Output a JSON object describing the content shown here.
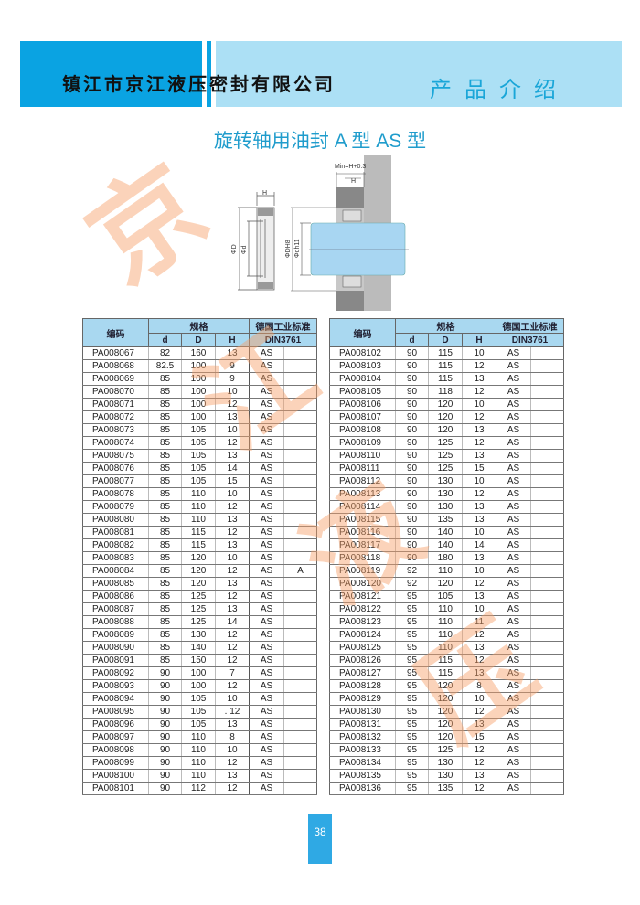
{
  "header": {
    "company": "镇江市京江液压密封有限公司",
    "section": "产品介绍"
  },
  "title": "旋转轴用油封 A 型   AS 型",
  "watermark": [
    "京",
    "江",
    "液",
    "压"
  ],
  "diagram": {
    "labels": {
      "h": "H",
      "d_outer": "ΦD",
      "d_inner": "Φd",
      "bore": "ΦDH8",
      "shaft": "Φdh11",
      "min": "Min=H+0.3"
    }
  },
  "table_headers": {
    "code": "编码",
    "spec": "规格",
    "d": "d",
    "D": "D",
    "H": "H",
    "std": "德国工业标准",
    "std_code": "DIN3761"
  },
  "left_rows": [
    [
      "PA008067",
      "82",
      "160",
      "13",
      "AS",
      ""
    ],
    [
      "PA008068",
      "82.5",
      "100",
      "9",
      "AS",
      ""
    ],
    [
      "PA008069",
      "85",
      "100",
      "9",
      "AS",
      ""
    ],
    [
      "PA008070",
      "85",
      "100",
      "10",
      "AS",
      ""
    ],
    [
      "PA008071",
      "85",
      "100",
      "12",
      "AS",
      ""
    ],
    [
      "PA008072",
      "85",
      "100",
      "13",
      "AS",
      ""
    ],
    [
      "PA008073",
      "85",
      "105",
      "10",
      "AS",
      ""
    ],
    [
      "PA008074",
      "85",
      "105",
      "12",
      "AS",
      ""
    ],
    [
      "PA008075",
      "85",
      "105",
      "13",
      "AS",
      ""
    ],
    [
      "PA008076",
      "85",
      "105",
      "14",
      "AS",
      ""
    ],
    [
      "PA008077",
      "85",
      "105",
      "15",
      "AS",
      ""
    ],
    [
      "PA008078",
      "85",
      "110",
      "10",
      "AS",
      ""
    ],
    [
      "PA008079",
      "85",
      "110",
      "12",
      "AS",
      ""
    ],
    [
      "PA008080",
      "85",
      "110",
      "13",
      "AS",
      ""
    ],
    [
      "PA008081",
      "85",
      "115",
      "12",
      "AS",
      ""
    ],
    [
      "PA008082",
      "85",
      "115",
      "13",
      "AS",
      ""
    ],
    [
      "PA008083",
      "85",
      "120",
      "10",
      "AS",
      ""
    ],
    [
      "PA008084",
      "85",
      "120",
      "12",
      "AS",
      "A"
    ],
    [
      "PA008085",
      "85",
      "120",
      "13",
      "AS",
      ""
    ],
    [
      "PA008086",
      "85",
      "125",
      "12",
      "AS",
      ""
    ],
    [
      "PA008087",
      "85",
      "125",
      "13",
      "AS",
      ""
    ],
    [
      "PA008088",
      "85",
      "125",
      "14",
      "AS",
      ""
    ],
    [
      "PA008089",
      "85",
      "130",
      "12",
      "AS",
      ""
    ],
    [
      "PA008090",
      "85",
      "140",
      "12",
      "AS",
      ""
    ],
    [
      "PA008091",
      "85",
      "150",
      "12",
      "AS",
      ""
    ],
    [
      "PA008092",
      "90",
      "100",
      "7",
      "AS",
      ""
    ],
    [
      "PA008093",
      "90",
      "100",
      "12",
      "AS",
      ""
    ],
    [
      "PA008094",
      "90",
      "105",
      "10",
      "AS",
      ""
    ],
    [
      "PA008095",
      "90",
      "105",
      ". 12",
      "AS",
      ""
    ],
    [
      "PA008096",
      "90",
      "105",
      "13",
      "AS",
      ""
    ],
    [
      "PA008097",
      "90",
      "110",
      "8",
      "AS",
      ""
    ],
    [
      "PA008098",
      "90",
      "110",
      "10",
      "AS",
      ""
    ],
    [
      "PA008099",
      "90",
      "110",
      "12",
      "AS",
      ""
    ],
    [
      "PA008100",
      "90",
      "110",
      "13",
      "AS",
      ""
    ],
    [
      "PA008101",
      "90",
      "112",
      "12",
      "AS",
      ""
    ]
  ],
  "right_rows": [
    [
      "PA008102",
      "90",
      "115",
      "10",
      "AS",
      ""
    ],
    [
      "PA008103",
      "90",
      "115",
      "12",
      "AS",
      ""
    ],
    [
      "PA008104",
      "90",
      "115",
      "13",
      "AS",
      ""
    ],
    [
      "PA008105",
      "90",
      "118",
      "12",
      "AS",
      ""
    ],
    [
      "PA008106",
      "90",
      "120",
      "10",
      "AS",
      ""
    ],
    [
      "PA008107",
      "90",
      "120",
      "12",
      "AS",
      ""
    ],
    [
      "PA008108",
      "90",
      "120",
      "13",
      "AS",
      ""
    ],
    [
      "PA008109",
      "90",
      "125",
      "12",
      "AS",
      ""
    ],
    [
      "PA008110",
      "90",
      "125",
      "13",
      "AS",
      ""
    ],
    [
      "PA008111",
      "90",
      "125",
      "15",
      "AS",
      ""
    ],
    [
      "PA008112",
      "90",
      "130",
      "10",
      "AS",
      ""
    ],
    [
      "PA008113",
      "90",
      "130",
      "12",
      "AS",
      ""
    ],
    [
      "PA008114",
      "90",
      "130",
      "13",
      "AS",
      ""
    ],
    [
      "PA008115",
      "90",
      "135",
      "13",
      "AS",
      ""
    ],
    [
      "PA008116",
      "90",
      "140",
      "10",
      "AS",
      ""
    ],
    [
      "PA008117",
      "90",
      "140",
      "14",
      "AS",
      ""
    ],
    [
      "PA008118",
      "90",
      "180",
      "13",
      "AS",
      ""
    ],
    [
      "PA008119",
      "92",
      "110",
      "10",
      "AS",
      ""
    ],
    [
      "PA008120",
      "92",
      "120",
      "12",
      "AS",
      ""
    ],
    [
      "PA008121",
      "95",
      "105",
      "13",
      "AS",
      ""
    ],
    [
      "PA008122",
      "95",
      "110",
      "10",
      "AS",
      ""
    ],
    [
      "PA008123",
      "95",
      "110",
      "11",
      "AS",
      ""
    ],
    [
      "PA008124",
      "95",
      "110",
      "12",
      "AS",
      ""
    ],
    [
      "PA008125",
      "95",
      "110",
      "13",
      "AS",
      ""
    ],
    [
      "PA008126",
      "95",
      "115",
      "12",
      "AS",
      ""
    ],
    [
      "PA008127",
      "95",
      "115",
      "13",
      "AS",
      ""
    ],
    [
      "PA008128",
      "95",
      "120",
      "8",
      "AS",
      ""
    ],
    [
      "PA008129",
      "95",
      "120",
      "10",
      "AS",
      ""
    ],
    [
      "PA008130",
      "95",
      "120",
      "12",
      "AS",
      ""
    ],
    [
      "PA008131",
      "95",
      "120",
      "13",
      "AS",
      ""
    ],
    [
      "PA008132",
      "95",
      "120",
      "15",
      "AS",
      ""
    ],
    [
      "PA008133",
      "95",
      "125",
      "12",
      "AS",
      ""
    ],
    [
      "PA008134",
      "95",
      "130",
      "12",
      "AS",
      ""
    ],
    [
      "PA008135",
      "95",
      "130",
      "13",
      "AS",
      ""
    ],
    [
      "PA008136",
      "95",
      "135",
      "12",
      "AS",
      ""
    ]
  ],
  "page_number": "38",
  "colors": {
    "header_dark": "#0aa3e2",
    "header_light": "#ace0f5",
    "table_header": "#a9d8f0",
    "title": "#1f9ccc",
    "watermark": "#f7a068"
  }
}
